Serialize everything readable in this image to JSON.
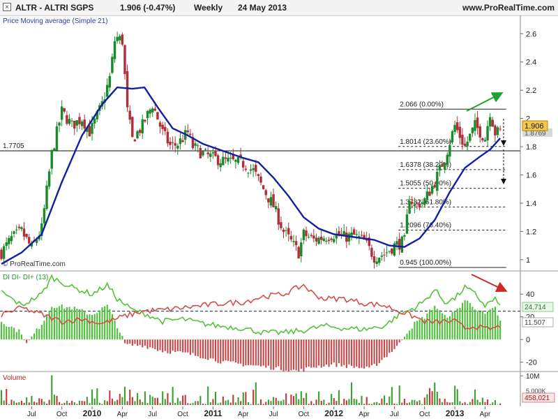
{
  "header": {
    "close_glyph": "×",
    "symbol": "ALTR - ALTRI SGPS",
    "quote": "1.906 (-0.47%)",
    "period": "Weekly",
    "date": "24 May 2013",
    "site": "www.ProRealTime.com"
  },
  "colors": {
    "candle_up": "#1a8a2a",
    "candle_down": "#b0303a",
    "ma_line": "#1020a0",
    "di_plus": "#55c23a",
    "di_minus": "#d05048",
    "hist_pos": "#4cc038",
    "hist_neg": "#c44848",
    "vol_up": "#3aa030",
    "vol_down": "#c03a3a",
    "up_arrow": "#22a030",
    "down_arrow": "#d02828"
  },
  "chart_data": [
    {
      "type": "candlestick",
      "title": "Price Moving average (Simple 21)",
      "watermark": "© ProRealTime.com",
      "ylim": [
        0.93,
        2.72
      ],
      "yticks": [
        "1",
        "1.2",
        "1.4",
        "1.6",
        "1.8",
        "2",
        "2.2",
        "2.4",
        "2.6"
      ],
      "x_ticks": [
        {
          "x": 3,
          "label": "Jul"
        },
        {
          "x": 6,
          "label": "Oct"
        },
        {
          "x": 9,
          "label": "2010"
        },
        {
          "x": 12,
          "label": "Apr"
        },
        {
          "x": 15,
          "label": "Jul"
        },
        {
          "x": 18,
          "label": "Oct"
        },
        {
          "x": 21,
          "label": "2011"
        },
        {
          "x": 24,
          "label": "Apr"
        },
        {
          "x": 27,
          "label": "Jul"
        },
        {
          "x": 30,
          "label": "Oct"
        },
        {
          "x": 33,
          "label": "2012"
        },
        {
          "x": 36,
          "label": "Apr"
        },
        {
          "x": 39,
          "label": "Jul"
        },
        {
          "x": 42,
          "label": "Oct"
        },
        {
          "x": 45,
          "label": "2013"
        },
        {
          "x": 48,
          "label": "Apr"
        }
      ],
      "x_range": [
        0,
        51.5
      ],
      "close_anchors": [
        [
          0,
          1.05
        ],
        [
          1,
          1.15
        ],
        [
          2,
          1.2
        ],
        [
          3,
          1.08
        ],
        [
          4,
          1.22
        ],
        [
          5,
          1.75
        ],
        [
          6,
          2.05
        ],
        [
          7,
          1.95
        ],
        [
          8,
          2.0
        ],
        [
          8.8,
          1.9
        ],
        [
          10,
          2.1
        ],
        [
          10.8,
          2.3
        ],
        [
          11.3,
          2.58
        ],
        [
          12,
          2.55
        ],
        [
          12.5,
          2.05
        ],
        [
          13,
          1.85
        ],
        [
          14,
          1.95
        ],
        [
          15,
          2.1
        ],
        [
          16,
          1.9
        ],
        [
          16.8,
          1.8
        ],
        [
          17.5,
          1.82
        ],
        [
          18.5,
          1.9
        ],
        [
          19,
          1.8
        ],
        [
          20,
          1.75
        ],
        [
          21,
          1.72
        ],
        [
          22,
          1.7
        ],
        [
          23,
          1.69
        ],
        [
          24,
          1.68
        ],
        [
          25,
          1.63
        ],
        [
          26,
          1.5
        ],
        [
          27,
          1.38
        ],
        [
          28,
          1.2
        ],
        [
          29,
          1.1
        ],
        [
          29.5,
          1.05
        ],
        [
          30,
          1.18
        ],
        [
          31,
          1.14
        ],
        [
          32,
          1.16
        ],
        [
          33,
          1.18
        ],
        [
          34,
          1.16
        ],
        [
          35,
          1.17
        ],
        [
          36,
          1.13
        ],
        [
          37,
          1.02
        ],
        [
          38,
          1.04
        ],
        [
          39,
          1.1
        ],
        [
          40,
          1.13
        ],
        [
          40.5,
          1.45
        ],
        [
          41,
          1.38
        ],
        [
          42,
          1.42
        ],
        [
          43,
          1.55
        ],
        [
          44,
          1.72
        ],
        [
          45,
          1.95
        ],
        [
          46,
          1.8
        ],
        [
          47,
          1.95
        ],
        [
          48,
          1.86
        ],
        [
          48.5,
          2.05
        ],
        [
          49,
          1.9
        ],
        [
          49.5,
          1.906
        ]
      ],
      "series": [
        {
          "name": "Price Moving average (Simple 21)",
          "points": [
            [
              0,
              0.97
            ],
            [
              2,
              1.05
            ],
            [
              4,
              1.18
            ],
            [
              6,
              1.55
            ],
            [
              8,
              1.88
            ],
            [
              10,
              2.1
            ],
            [
              11.5,
              2.22
            ],
            [
              13,
              2.21
            ],
            [
              14.2,
              2.22
            ],
            [
              15.5,
              2.08
            ],
            [
              17,
              1.93
            ],
            [
              18.5,
              1.88
            ],
            [
              20,
              1.82
            ],
            [
              22,
              1.77
            ],
            [
              24,
              1.72
            ],
            [
              25.5,
              1.69
            ],
            [
              27,
              1.58
            ],
            [
              28.5,
              1.45
            ],
            [
              30,
              1.3
            ],
            [
              31.5,
              1.22
            ],
            [
              33,
              1.18
            ],
            [
              35,
              1.16
            ],
            [
              37,
              1.14
            ],
            [
              38.5,
              1.1
            ],
            [
              40,
              1.09
            ],
            [
              41.5,
              1.15
            ],
            [
              43,
              1.28
            ],
            [
              44.5,
              1.48
            ],
            [
              46,
              1.65
            ],
            [
              47.5,
              1.73
            ],
            [
              48.5,
              1.78
            ],
            [
              49.5,
              1.86
            ]
          ]
        }
      ],
      "hline": {
        "value": 1.7705,
        "label": "1.7705"
      },
      "fib_levels": [
        {
          "label": "2.066 (0.00%)",
          "value": 2.066
        },
        {
          "label": "1.8014 (23.60%)",
          "value": 1.8014
        },
        {
          "label": "1.6378 (38.20%)",
          "value": 1.6378
        },
        {
          "label": "1.5055 (50.00%)",
          "value": 1.5055
        },
        {
          "label": "1.3732 (61.80%)",
          "value": 1.3732
        },
        {
          "label": "1.2096 (76.40%)",
          "value": 1.2096
        },
        {
          "label": "0.945 (100.00%)",
          "value": 0.945
        }
      ],
      "price_tag": "1.906",
      "ma_tag": "1.8769"
    },
    {
      "type": "line",
      "title": "DI DI- DI+ (13)",
      "ylim": [
        -27,
        58
      ],
      "yticks": [
        "-20",
        "0",
        "20",
        "40"
      ],
      "series": [
        {
          "name": "DI+",
          "points": [
            [
              0,
              42
            ],
            [
              2,
              30
            ],
            [
              4,
              40
            ],
            [
              5,
              55
            ],
            [
              7,
              46
            ],
            [
              9,
              40
            ],
            [
              10.5,
              48
            ],
            [
              11.5,
              36
            ],
            [
              13,
              26
            ],
            [
              14.5,
              22
            ],
            [
              16,
              16
            ],
            [
              18,
              18
            ],
            [
              20,
              14
            ],
            [
              21.5,
              12
            ],
            [
              24,
              10
            ],
            [
              26,
              6
            ],
            [
              28,
              6
            ],
            [
              30,
              8
            ],
            [
              32,
              12
            ],
            [
              34,
              10
            ],
            [
              36,
              9
            ],
            [
              38,
              12
            ],
            [
              39.5,
              22
            ],
            [
              41,
              28
            ],
            [
              42,
              34
            ],
            [
              43,
              44
            ],
            [
              44,
              33
            ],
            [
              45,
              36
            ],
            [
              46,
              46
            ],
            [
              47,
              40
            ],
            [
              48,
              30
            ],
            [
              49,
              36
            ],
            [
              49.5,
              28
            ]
          ]
        },
        {
          "name": "DI-",
          "points": [
            [
              0,
              22
            ],
            [
              2,
              28
            ],
            [
              4,
              22
            ],
            [
              6,
              16
            ],
            [
              8,
              18
            ],
            [
              10,
              14
            ],
            [
              12,
              20
            ],
            [
              14,
              25
            ],
            [
              16,
              26
            ],
            [
              18,
              28
            ],
            [
              20,
              30
            ],
            [
              22,
              32
            ],
            [
              24,
              33
            ],
            [
              26,
              38
            ],
            [
              28,
              40
            ],
            [
              30,
              48
            ],
            [
              31,
              40
            ],
            [
              32,
              36
            ],
            [
              34,
              36
            ],
            [
              36,
              32
            ],
            [
              38,
              30
            ],
            [
              39.5,
              25
            ],
            [
              41,
              20
            ],
            [
              42,
              16
            ],
            [
              43,
              15
            ],
            [
              44,
              16
            ],
            [
              45,
              16
            ],
            [
              46,
              10
            ],
            [
              47,
              12
            ],
            [
              48,
              9
            ],
            [
              49,
              10
            ],
            [
              49.5,
              12
            ]
          ]
        },
        {
          "name": "DI+ - DI- (histogram)",
          "points": [
            [
              0,
              16
            ],
            [
              2,
              6
            ],
            [
              2.5,
              -4
            ],
            [
              4,
              14
            ],
            [
              5,
              30
            ],
            [
              7,
              28
            ],
            [
              9,
              22
            ],
            [
              10.5,
              30
            ],
            [
              11.5,
              12
            ],
            [
              12.3,
              -5
            ],
            [
              14,
              -5
            ],
            [
              16,
              -10
            ],
            [
              18,
              -12
            ],
            [
              20,
              -15
            ],
            [
              22,
              -20
            ],
            [
              24,
              -22
            ],
            [
              26,
              -24
            ],
            [
              28,
              -26
            ],
            [
              29.5,
              -28
            ],
            [
              31,
              -24
            ],
            [
              33,
              -22
            ],
            [
              35,
              -24
            ],
            [
              36.5,
              -26
            ],
            [
              37.5,
              -20
            ],
            [
              38.5,
              -12
            ],
            [
              39.5,
              -4
            ],
            [
              40,
              4
            ],
            [
              41,
              14
            ],
            [
              42,
              20
            ],
            [
              43,
              30
            ],
            [
              44,
              20
            ],
            [
              45,
              24
            ],
            [
              46,
              35
            ],
            [
              47,
              28
            ],
            [
              48,
              22
            ],
            [
              49,
              28
            ],
            [
              49.5,
              16
            ]
          ]
        }
      ],
      "hline": {
        "value": 25,
        "label": "dashed"
      },
      "di_plus_tag": "24.714",
      "di_minus_tag": "11.507"
    },
    {
      "type": "bar",
      "title": "Volume",
      "ylim": [
        0,
        11000000
      ],
      "yticks": [
        "10M",
        "5.000K"
      ],
      "last_value": "458,021"
    }
  ]
}
